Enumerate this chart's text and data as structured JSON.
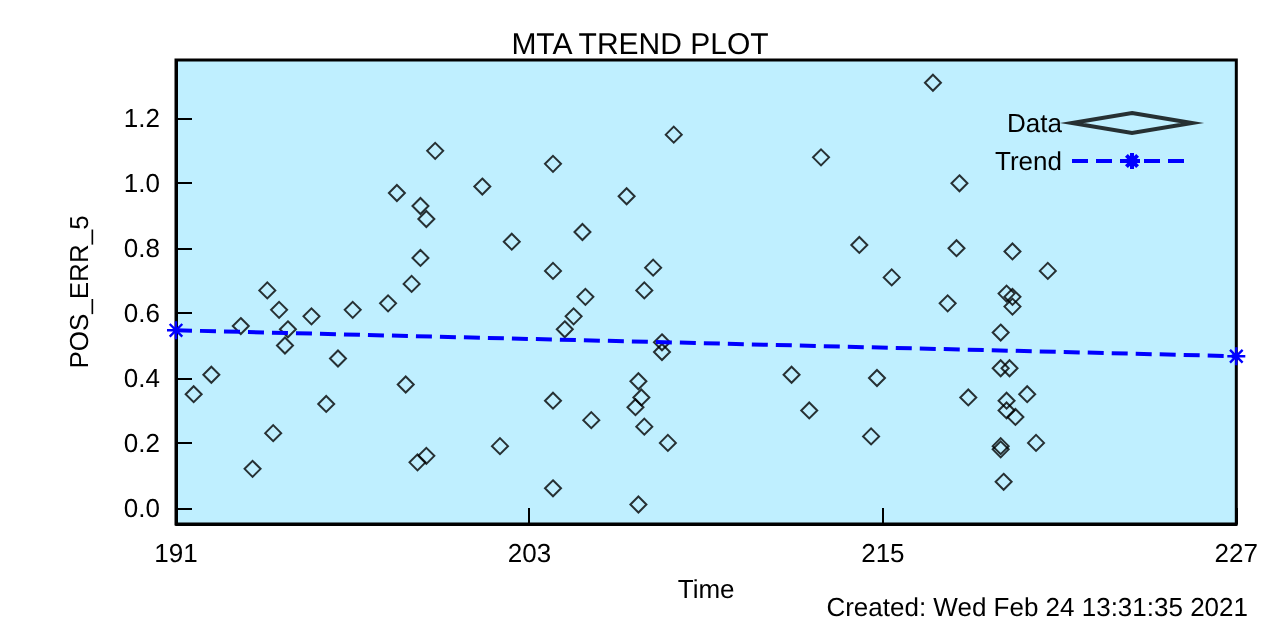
{
  "chart_data": {
    "type": "scatter",
    "title": "MTA TREND PLOT",
    "xlabel": "Time",
    "ylabel": "POS_ERR_5",
    "annotations": [
      "Created: Wed Feb 24 13:31:35 2021"
    ],
    "xlim": [
      191,
      227
    ],
    "xticks": [
      191,
      203,
      215,
      227
    ],
    "ylim": [
      -0.05,
      1.38
    ],
    "yticks": [
      {
        "value": 0,
        "label": "0.0"
      },
      {
        "value": 0.2,
        "label": "0.2"
      },
      {
        "value": 0.4,
        "label": "0.4"
      },
      {
        "value": 0.6,
        "label": "0.6"
      },
      {
        "value": 0.8,
        "label": "0.8"
      },
      {
        "value": 1,
        "label": "1.0"
      },
      {
        "value": 1.2,
        "label": "1.2"
      }
    ],
    "grid": false,
    "legend": "top right",
    "series": [
      {
        "name": "Data",
        "marker": "diamond",
        "color": "#000000",
        "x": [
          191.6,
          192.2,
          193.2,
          193.6,
          194.1,
          194.3,
          194.5,
          194.8,
          194.7,
          195.6,
          196.1,
          196.5,
          197.0,
          198.2,
          198.5,
          198.8,
          199.0,
          199.3,
          199.5,
          199.3,
          199.8,
          199.2,
          199.5,
          201.4,
          202.4,
          202.0,
          203.8,
          203.8,
          203.8,
          203.8,
          207.9,
          206.3,
          204.8,
          207.2,
          206.9,
          204.9,
          204.5,
          204.2,
          207.5,
          207.5,
          206.7,
          206.8,
          206.6,
          206.9,
          205.1,
          207.7,
          206.7,
          212.9,
          214.2,
          215.3,
          211.9,
          214.8,
          212.5,
          214.6,
          216.7,
          217.6,
          217.5,
          219.4,
          220.6,
          219.2,
          219.4,
          219.4,
          217.2,
          219.0,
          219.0,
          219.3,
          217.9,
          219.9,
          219.2,
          219.2,
          219.5,
          220.2,
          219.0,
          219.0,
          219.1
        ],
        "values": [
          0.35,
          0.41,
          0.56,
          0.12,
          0.67,
          0.23,
          0.61,
          0.55,
          0.5,
          0.59,
          0.32,
          0.46,
          0.61,
          0.63,
          0.97,
          0.38,
          0.69,
          0.93,
          0.89,
          0.77,
          1.1,
          0.14,
          0.16,
          0.99,
          0.82,
          0.19,
          1.06,
          0.73,
          0.33,
          0.06,
          1.15,
          0.96,
          0.85,
          0.74,
          0.67,
          0.65,
          0.59,
          0.55,
          0.51,
          0.48,
          0.39,
          0.34,
          0.31,
          0.25,
          0.27,
          0.2,
          0.01,
          1.08,
          0.81,
          0.71,
          0.41,
          0.4,
          0.3,
          0.22,
          1.31,
          1.0,
          0.8,
          0.79,
          0.73,
          0.66,
          0.65,
          0.62,
          0.63,
          0.54,
          0.43,
          0.43,
          0.34,
          0.35,
          0.33,
          0.3,
          0.28,
          0.2,
          0.19,
          0.18,
          0.08
        ]
      },
      {
        "name": "Trend",
        "type": "line",
        "marker": "cross",
        "line_style": "dashed",
        "color": "#0000ff",
        "x": [
          191,
          227
        ],
        "values": [
          0.547,
          0.467
        ]
      }
    ]
  }
}
